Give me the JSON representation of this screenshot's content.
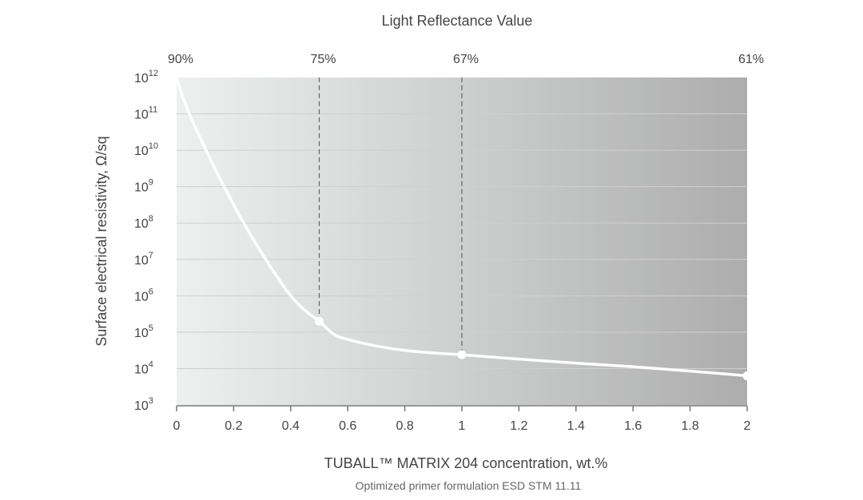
{
  "chart_data": {
    "type": "line",
    "title": "Light Reflectance Value",
    "xlabel": "TUBALL™ MATRIX 204 concentration, wt.%",
    "ylabel": "Surface electrical resistivity, Ω/sq",
    "caption": "Optimized primer formulation ESD STM 11.11",
    "xlim": [
      0,
      2
    ],
    "ylim_log10": [
      3,
      12
    ],
    "y_scale": "log",
    "x_ticks": [
      "0",
      "0.2",
      "0.4",
      "0.6",
      "0.8",
      "1",
      "1.2",
      "1.4",
      "1.6",
      "1.8",
      "2"
    ],
    "y_ticks": [
      {
        "base": "10",
        "exp": "12"
      },
      {
        "base": "10",
        "exp": "11"
      },
      {
        "base": "10",
        "exp": "10"
      },
      {
        "base": "10",
        "exp": "9"
      },
      {
        "base": "10",
        "exp": "8"
      },
      {
        "base": "10",
        "exp": "7"
      },
      {
        "base": "10",
        "exp": "6"
      },
      {
        "base": "10",
        "exp": "5"
      },
      {
        "base": "10",
        "exp": "4"
      },
      {
        "base": "10",
        "exp": "3"
      }
    ],
    "lrv_markers": [
      {
        "x": 0,
        "label": "90%"
      },
      {
        "x": 0.5,
        "label": "75%"
      },
      {
        "x": 1,
        "label": "67%"
      },
      {
        "x": 2,
        "label": "61%"
      }
    ],
    "series": [
      {
        "x": [
          0,
          0.02,
          0.05,
          0.1,
          0.15,
          0.2,
          0.25,
          0.3,
          0.35,
          0.4,
          0.45,
          0.5,
          0.55,
          0.6,
          0.7,
          0.8,
          0.9,
          1.0,
          1.2,
          1.4,
          1.6,
          1.8,
          2.0
        ],
        "y_log10": [
          12,
          11.5,
          10.9,
          10.05,
          9.25,
          8.5,
          7.8,
          7.15,
          6.55,
          6.0,
          5.6,
          5.3,
          4.95,
          4.8,
          4.62,
          4.5,
          4.43,
          4.38,
          4.26,
          4.15,
          4.05,
          3.93,
          3.8
        ]
      }
    ],
    "points": [
      {
        "x": 0.5,
        "y_log10": 5.3
      },
      {
        "x": 1.0,
        "y_log10": 4.38
      },
      {
        "x": 2.0,
        "y_log10": 3.8
      }
    ],
    "gradient": {
      "from": "#eef0f0",
      "to": "#adadad"
    },
    "grid": true
  }
}
